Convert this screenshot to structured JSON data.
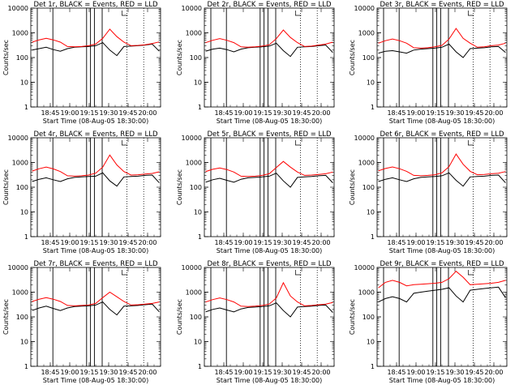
{
  "chart_data": {
    "type": "line",
    "layout": "3x3 grid",
    "ylabel": "Counts/sec",
    "xlabel": "Start Time (08-Aug-05 18:30:00)",
    "ylim": [
      1,
      10000
    ],
    "yscale": "log",
    "y_tick_labels": [
      "1",
      "10",
      "100",
      "1000",
      "10000"
    ],
    "x_tick_labels": [
      "18:45",
      "19:00",
      "19:15",
      "19:30",
      "19:45",
      "20:00"
    ],
    "x_tick_minutes": [
      15,
      30,
      45,
      60,
      75,
      90
    ],
    "xlim_minutes": [
      0,
      100
    ],
    "series_names": [
      "Events (black)",
      "LLD (red)"
    ],
    "colors": {
      "events": "#000000",
      "lld": "#ff0000"
    },
    "vlines_solid_minutes": [
      5,
      17,
      43,
      46,
      49,
      55
    ],
    "vlines_dotted_minutes": [
      74,
      87
    ],
    "detectors": [
      {
        "title": "Det 1r, BLACK = Events, RED = LLD",
        "bump": 2,
        "events": [
          200,
          230,
          260,
          210,
          180,
          230,
          260,
          270,
          280,
          300,
          400,
          200,
          120,
          280,
          290,
          300,
          320,
          350,
          180
        ],
        "lld": [
          420,
          520,
          600,
          520,
          420,
          280,
          270,
          280,
          300,
          350,
          600,
          1400,
          700,
          420,
          300,
          310,
          330,
          370,
          430
        ]
      },
      {
        "title": "Det 2r, BLACK = Events, RED = LLD",
        "bump": 2,
        "events": [
          180,
          220,
          240,
          210,
          170,
          220,
          250,
          260,
          270,
          290,
          380,
          190,
          110,
          260,
          270,
          280,
          300,
          320,
          160
        ],
        "lld": [
          400,
          500,
          580,
          500,
          400,
          270,
          260,
          270,
          290,
          330,
          580,
          1300,
          650,
          400,
          280,
          290,
          320,
          350,
          420
        ]
      },
      {
        "title": "Det 3r, BLACK = Events, RED = LLD",
        "bump": 2,
        "events": [
          150,
          180,
          190,
          170,
          150,
          200,
          220,
          230,
          240,
          260,
          350,
          170,
          100,
          230,
          240,
          250,
          270,
          280,
          160
        ],
        "lld": [
          380,
          480,
          560,
          480,
          380,
          250,
          240,
          250,
          270,
          310,
          560,
          1500,
          600,
          380,
          260,
          270,
          300,
          320,
          380
        ]
      },
      {
        "title": "Det 4r, BLACK = Events, RED = LLD",
        "bump": 2,
        "events": [
          170,
          210,
          240,
          200,
          170,
          220,
          250,
          260,
          270,
          280,
          380,
          180,
          110,
          260,
          270,
          280,
          300,
          310,
          150
        ],
        "lld": [
          450,
          560,
          650,
          550,
          430,
          290,
          280,
          290,
          310,
          370,
          650,
          2000,
          800,
          430,
          310,
          320,
          340,
          360,
          420
        ]
      },
      {
        "title": "Det 5r, BLACK = Events, RED = LLD",
        "bump": 2,
        "events": [
          160,
          200,
          230,
          190,
          160,
          210,
          240,
          250,
          260,
          280,
          370,
          180,
          100,
          250,
          260,
          270,
          290,
          300,
          150
        ],
        "lld": [
          430,
          530,
          600,
          520,
          410,
          280,
          270,
          280,
          300,
          350,
          620,
          1100,
          650,
          410,
          300,
          310,
          330,
          350,
          410
        ]
      },
      {
        "title": "Det 6r, BLACK = Events, RED = LLD",
        "bump": 2,
        "events": [
          170,
          210,
          240,
          200,
          170,
          220,
          250,
          260,
          270,
          290,
          380,
          190,
          110,
          260,
          270,
          280,
          300,
          310,
          150
        ],
        "lld": [
          460,
          570,
          660,
          560,
          440,
          300,
          290,
          300,
          320,
          380,
          680,
          2200,
          850,
          440,
          320,
          330,
          350,
          370,
          430
        ]
      },
      {
        "title": "Det 7r, BLACK = Events, RED = LLD",
        "bump": 2,
        "events": [
          180,
          230,
          270,
          220,
          180,
          230,
          260,
          270,
          280,
          300,
          400,
          200,
          120,
          270,
          280,
          290,
          310,
          330,
          160
        ],
        "lld": [
          420,
          520,
          600,
          520,
          420,
          290,
          280,
          290,
          300,
          350,
          600,
          1000,
          650,
          420,
          300,
          310,
          330,
          350,
          400
        ]
      },
      {
        "title": "Det 8r, BLACK = Events, RED = LLD",
        "bump": 2,
        "events": [
          160,
          200,
          230,
          190,
          160,
          210,
          240,
          250,
          260,
          280,
          370,
          180,
          100,
          250,
          260,
          270,
          290,
          300,
          150
        ],
        "lld": [
          400,
          500,
          580,
          500,
          400,
          270,
          260,
          270,
          290,
          330,
          580,
          2400,
          700,
          400,
          280,
          290,
          310,
          330,
          380
        ]
      },
      {
        "title": "Det 9r, BLACK = Events, RED = LLD",
        "bump": 6,
        "events": [
          400,
          550,
          650,
          550,
          400,
          900,
          1000,
          1100,
          1200,
          1300,
          1500,
          700,
          400,
          1200,
          1300,
          1400,
          1500,
          1600,
          600
        ],
        "lld": [
          1500,
          2500,
          3000,
          2500,
          1800,
          2000,
          2100,
          2200,
          2300,
          2500,
          3500,
          7000,
          4000,
          2000,
          2100,
          2200,
          2300,
          2500,
          3000
        ]
      }
    ]
  }
}
